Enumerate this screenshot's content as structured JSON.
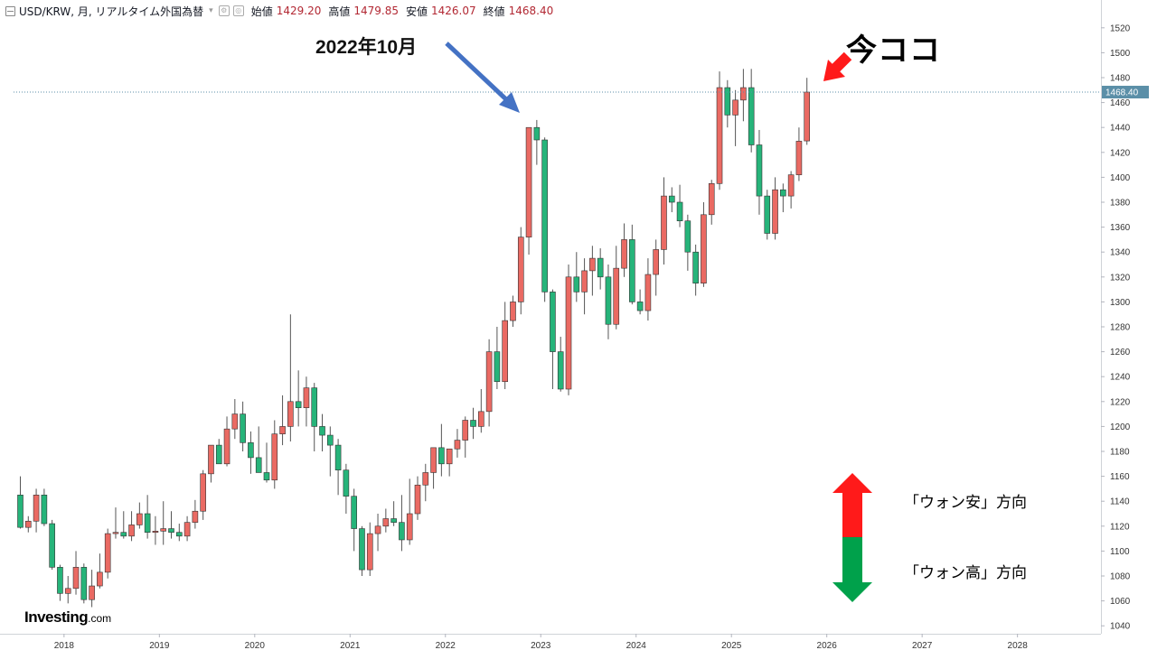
{
  "header": {
    "title": "USD/KRW, 月, リアルタイム外国為替",
    "ohlc": {
      "open_label": "始値",
      "open": "1429.20",
      "high_label": "高値",
      "high": "1479.85",
      "low_label": "安値",
      "low": "1426.07",
      "close_label": "終値",
      "close": "1468.40"
    }
  },
  "annotations": {
    "oct2022": "2022年10月",
    "now": "今ココ",
    "weak_won": "「ウォン安」方向",
    "strong_won": "「ウォン高」方向"
  },
  "logo": {
    "main": "Investing",
    "suffix": ".com"
  },
  "colors": {
    "up": "#ef5350",
    "down": "#26a69a",
    "up_fill": "#ea6a63",
    "down_fill": "#26b47a",
    "arrow_blue": "#4472c4",
    "arrow_red": "#ff1a1a",
    "arrow_green": "#00a14b",
    "price_line": "#5b8fa8"
  },
  "chart_data": {
    "type": "candlestick",
    "x_type": "monthly",
    "start": "2017-07",
    "x_ticks": [
      "2018",
      "2019",
      "2020",
      "2021",
      "2022",
      "2023",
      "2024",
      "2025",
      "2026",
      "2027",
      "2028"
    ],
    "y_ticks": [
      1040,
      1060,
      1080,
      1100,
      1120,
      1140,
      1160,
      1180,
      1200,
      1220,
      1240,
      1260,
      1280,
      1300,
      1320,
      1340,
      1360,
      1380,
      1400,
      1420,
      1440,
      1460,
      1480,
      1500,
      1520
    ],
    "ylim": [
      1030,
      1530
    ],
    "last_price": 1468.4,
    "last_price_label": "1468.40",
    "candles": [
      [
        1145,
        1160,
        1118,
        1119
      ],
      [
        1119,
        1128,
        1115,
        1124
      ],
      [
        1124,
        1150,
        1115,
        1145
      ],
      [
        1145,
        1150,
        1120,
        1122
      ],
      [
        1122,
        1125,
        1085,
        1087
      ],
      [
        1087,
        1089,
        1060,
        1066
      ],
      [
        1066,
        1080,
        1058,
        1070
      ],
      [
        1070,
        1100,
        1065,
        1087
      ],
      [
        1087,
        1090,
        1058,
        1061
      ],
      [
        1061,
        1085,
        1055,
        1072
      ],
      [
        1072,
        1098,
        1070,
        1083
      ],
      [
        1083,
        1118,
        1078,
        1114
      ],
      [
        1114,
        1135,
        1110,
        1115
      ],
      [
        1115,
        1132,
        1110,
        1112
      ],
      [
        1112,
        1132,
        1108,
        1121
      ],
      [
        1121,
        1139,
        1118,
        1130
      ],
      [
        1130,
        1145,
        1110,
        1115
      ],
      [
        1115,
        1128,
        1105,
        1116
      ],
      [
        1116,
        1140,
        1105,
        1118
      ],
      [
        1118,
        1132,
        1110,
        1115
      ],
      [
        1115,
        1122,
        1108,
        1112
      ],
      [
        1112,
        1128,
        1108,
        1123
      ],
      [
        1123,
        1141,
        1118,
        1132
      ],
      [
        1132,
        1165,
        1125,
        1162
      ],
      [
        1162,
        1185,
        1155,
        1185
      ],
      [
        1185,
        1190,
        1170,
        1170
      ],
      [
        1170,
        1208,
        1168,
        1198
      ],
      [
        1198,
        1222,
        1190,
        1210
      ],
      [
        1210,
        1220,
        1180,
        1187
      ],
      [
        1187,
        1196,
        1162,
        1175
      ],
      [
        1175,
        1200,
        1168,
        1163
      ],
      [
        1163,
        1187,
        1155,
        1157
      ],
      [
        1157,
        1205,
        1150,
        1194
      ],
      [
        1194,
        1225,
        1185,
        1200
      ],
      [
        1200,
        1290,
        1188,
        1220
      ],
      [
        1220,
        1245,
        1200,
        1215
      ],
      [
        1215,
        1240,
        1200,
        1231
      ],
      [
        1231,
        1235,
        1180,
        1200
      ],
      [
        1200,
        1210,
        1180,
        1193
      ],
      [
        1193,
        1200,
        1160,
        1185
      ],
      [
        1185,
        1190,
        1145,
        1165
      ],
      [
        1165,
        1170,
        1130,
        1144
      ],
      [
        1144,
        1150,
        1100,
        1118
      ],
      [
        1118,
        1120,
        1080,
        1085
      ],
      [
        1085,
        1123,
        1080,
        1114
      ],
      [
        1114,
        1130,
        1100,
        1120
      ],
      [
        1120,
        1134,
        1115,
        1126
      ],
      [
        1126,
        1140,
        1120,
        1123
      ],
      [
        1123,
        1145,
        1100,
        1109
      ],
      [
        1109,
        1158,
        1105,
        1130
      ],
      [
        1130,
        1160,
        1125,
        1153
      ],
      [
        1153,
        1170,
        1140,
        1163
      ],
      [
        1163,
        1180,
        1150,
        1183
      ],
      [
        1183,
        1202,
        1160,
        1170
      ],
      [
        1170,
        1182,
        1160,
        1182
      ],
      [
        1182,
        1198,
        1175,
        1189
      ],
      [
        1189,
        1208,
        1175,
        1205
      ],
      [
        1205,
        1215,
        1190,
        1200
      ],
      [
        1200,
        1230,
        1195,
        1212
      ],
      [
        1212,
        1270,
        1200,
        1260
      ],
      [
        1260,
        1280,
        1230,
        1236
      ],
      [
        1236,
        1300,
        1230,
        1285
      ],
      [
        1285,
        1305,
        1280,
        1300
      ],
      [
        1300,
        1360,
        1290,
        1352
      ],
      [
        1352,
        1440,
        1338,
        1440
      ],
      [
        1440,
        1446,
        1410,
        1430
      ],
      [
        1430,
        1432,
        1300,
        1308
      ],
      [
        1308,
        1310,
        1230,
        1260
      ],
      [
        1260,
        1272,
        1228,
        1230
      ],
      [
        1230,
        1330,
        1225,
        1320
      ],
      [
        1320,
        1340,
        1300,
        1308
      ],
      [
        1308,
        1335,
        1290,
        1325
      ],
      [
        1325,
        1345,
        1305,
        1335
      ],
      [
        1335,
        1343,
        1310,
        1320
      ],
      [
        1320,
        1330,
        1270,
        1282
      ],
      [
        1282,
        1345,
        1278,
        1327
      ],
      [
        1327,
        1363,
        1320,
        1350
      ],
      [
        1350,
        1362,
        1298,
        1300
      ],
      [
        1300,
        1310,
        1290,
        1293
      ],
      [
        1293,
        1335,
        1285,
        1322
      ],
      [
        1322,
        1350,
        1305,
        1342
      ],
      [
        1342,
        1400,
        1330,
        1385
      ],
      [
        1385,
        1392,
        1372,
        1380
      ],
      [
        1380,
        1394,
        1360,
        1365
      ],
      [
        1365,
        1370,
        1325,
        1340
      ],
      [
        1340,
        1346,
        1305,
        1315
      ],
      [
        1315,
        1380,
        1312,
        1370
      ],
      [
        1370,
        1398,
        1362,
        1395
      ],
      [
        1395,
        1485,
        1390,
        1472
      ],
      [
        1472,
        1478,
        1440,
        1450
      ],
      [
        1450,
        1470,
        1425,
        1462
      ],
      [
        1462,
        1487,
        1445,
        1472
      ],
      [
        1472,
        1487,
        1420,
        1426
      ],
      [
        1426,
        1438,
        1370,
        1385
      ],
      [
        1385,
        1390,
        1350,
        1355
      ],
      [
        1355,
        1400,
        1350,
        1390
      ],
      [
        1390,
        1395,
        1372,
        1385
      ],
      [
        1385,
        1405,
        1375,
        1402
      ],
      [
        1402,
        1440,
        1397,
        1429
      ],
      [
        1429.2,
        1479.85,
        1426.07,
        1468.4
      ]
    ]
  }
}
